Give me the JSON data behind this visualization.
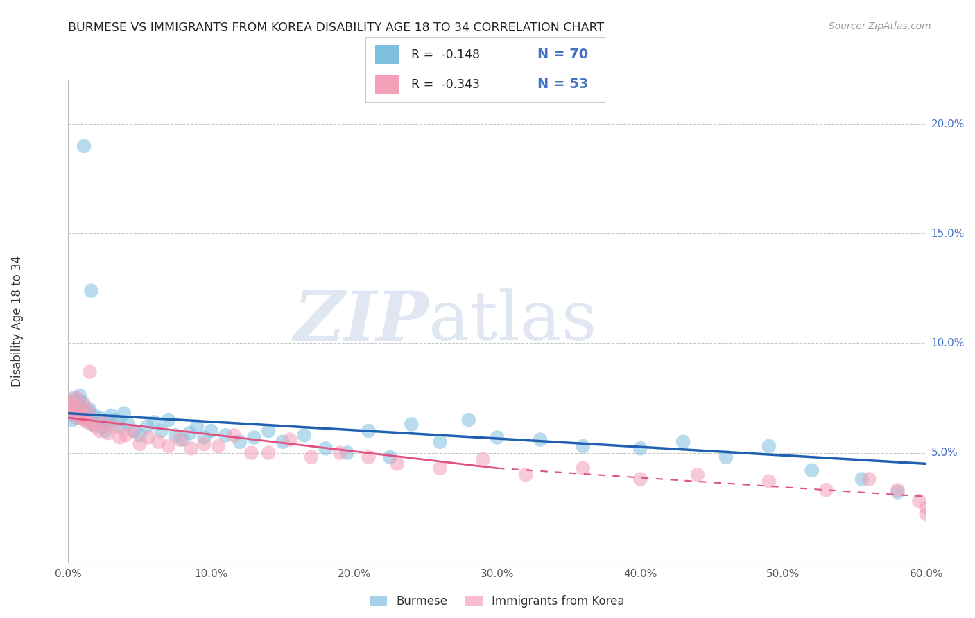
{
  "title": "BURMESE VS IMMIGRANTS FROM KOREA DISABILITY AGE 18 TO 34 CORRELATION CHART",
  "source": "Source: ZipAtlas.com",
  "ylabel": "Disability Age 18 to 34",
  "xlim": [
    0.0,
    0.6
  ],
  "ylim": [
    0.0,
    0.22
  ],
  "xticks": [
    0.0,
    0.1,
    0.2,
    0.3,
    0.4,
    0.5,
    0.6
  ],
  "yticks_right": [
    0.05,
    0.1,
    0.15,
    0.2
  ],
  "ytick_labels_right": [
    "5.0%",
    "10.0%",
    "15.0%",
    "20.0%"
  ],
  "xtick_labels": [
    "0.0%",
    "10.0%",
    "20.0%",
    "30.0%",
    "40.0%",
    "50.0%",
    "60.0%"
  ],
  "blue_color": "#7fbfdf",
  "pink_color": "#f4a0b8",
  "blue_line_color": "#2060b0",
  "pink_line_color": "#e05080",
  "watermark_zip": "ZIP",
  "watermark_atlas": "atlas",
  "legend_r1": "R =  -0.148",
  "legend_n1": "N = 70",
  "legend_r2": "R =  -0.343",
  "legend_n2": "N = 53",
  "legend_label1": "Burmese",
  "legend_label2": "Immigrants from Korea",
  "blue_scatter_x": [
    0.001,
    0.002,
    0.003,
    0.004,
    0.004,
    0.005,
    0.005,
    0.006,
    0.006,
    0.007,
    0.007,
    0.008,
    0.008,
    0.009,
    0.009,
    0.01,
    0.01,
    0.011,
    0.012,
    0.013,
    0.014,
    0.015,
    0.016,
    0.017,
    0.018,
    0.02,
    0.022,
    0.024,
    0.026,
    0.028,
    0.03,
    0.033,
    0.036,
    0.039,
    0.042,
    0.046,
    0.05,
    0.055,
    0.06,
    0.065,
    0.07,
    0.075,
    0.08,
    0.085,
    0.09,
    0.095,
    0.1,
    0.11,
    0.12,
    0.13,
    0.14,
    0.15,
    0.165,
    0.18,
    0.195,
    0.21,
    0.225,
    0.24,
    0.26,
    0.28,
    0.3,
    0.33,
    0.36,
    0.4,
    0.43,
    0.46,
    0.49,
    0.52,
    0.555,
    0.58
  ],
  "blue_scatter_y": [
    0.068,
    0.072,
    0.065,
    0.07,
    0.075,
    0.068,
    0.073,
    0.066,
    0.071,
    0.069,
    0.074,
    0.072,
    0.076,
    0.07,
    0.068,
    0.073,
    0.066,
    0.19,
    0.068,
    0.065,
    0.069,
    0.07,
    0.124,
    0.063,
    0.067,
    0.064,
    0.066,
    0.062,
    0.06,
    0.064,
    0.067,
    0.065,
    0.062,
    0.068,
    0.063,
    0.06,
    0.058,
    0.062,
    0.064,
    0.06,
    0.065,
    0.058,
    0.056,
    0.059,
    0.062,
    0.057,
    0.06,
    0.058,
    0.055,
    0.057,
    0.06,
    0.055,
    0.058,
    0.052,
    0.05,
    0.06,
    0.048,
    0.063,
    0.055,
    0.065,
    0.057,
    0.056,
    0.053,
    0.052,
    0.055,
    0.048,
    0.053,
    0.042,
    0.038,
    0.032
  ],
  "pink_scatter_x": [
    0.001,
    0.002,
    0.003,
    0.004,
    0.005,
    0.006,
    0.007,
    0.008,
    0.009,
    0.01,
    0.011,
    0.012,
    0.013,
    0.014,
    0.015,
    0.017,
    0.019,
    0.022,
    0.025,
    0.028,
    0.032,
    0.036,
    0.04,
    0.045,
    0.05,
    0.056,
    0.063,
    0.07,
    0.078,
    0.086,
    0.095,
    0.105,
    0.116,
    0.128,
    0.14,
    0.155,
    0.17,
    0.19,
    0.21,
    0.23,
    0.26,
    0.29,
    0.32,
    0.36,
    0.4,
    0.44,
    0.49,
    0.53,
    0.56,
    0.58,
    0.595,
    0.6,
    0.6
  ],
  "pink_scatter_y": [
    0.072,
    0.068,
    0.074,
    0.071,
    0.069,
    0.075,
    0.066,
    0.07,
    0.066,
    0.067,
    0.072,
    0.065,
    0.064,
    0.069,
    0.087,
    0.063,
    0.062,
    0.06,
    0.064,
    0.059,
    0.062,
    0.057,
    0.058,
    0.06,
    0.054,
    0.057,
    0.055,
    0.053,
    0.056,
    0.052,
    0.054,
    0.053,
    0.058,
    0.05,
    0.05,
    0.056,
    0.048,
    0.05,
    0.048,
    0.045,
    0.043,
    0.047,
    0.04,
    0.043,
    0.038,
    0.04,
    0.037,
    0.033,
    0.038,
    0.033,
    0.028,
    0.025,
    0.022
  ],
  "blue_line_x0": 0.0,
  "blue_line_y0": 0.068,
  "blue_line_x1": 0.6,
  "blue_line_y1": 0.045,
  "pink_line_solid_x0": 0.0,
  "pink_line_solid_y0": 0.066,
  "pink_line_solid_x1": 0.3,
  "pink_line_solid_y1": 0.043,
  "pink_line_dash_x0": 0.3,
  "pink_line_dash_y0": 0.043,
  "pink_line_dash_x1": 0.6,
  "pink_line_dash_y1": 0.03
}
